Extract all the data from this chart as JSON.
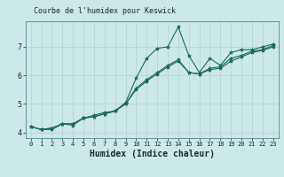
{
  "title": "Courbe de l'humidex pour Keswick",
  "xlabel": "Humidex (Indice chaleur)",
  "ylabel": "",
  "bg_color": "#cce8e8",
  "line_color": "#1a6a5a",
  "grid_color": "#b8d4d4",
  "x_data": [
    0,
    1,
    2,
    3,
    4,
    5,
    6,
    7,
    8,
    9,
    10,
    11,
    12,
    13,
    14,
    15,
    16,
    17,
    18,
    19,
    20,
    21,
    22,
    23
  ],
  "line1": [
    4.2,
    4.1,
    4.1,
    4.3,
    4.25,
    4.5,
    4.6,
    4.7,
    4.75,
    5.05,
    5.9,
    6.6,
    6.95,
    7.0,
    7.7,
    6.7,
    6.1,
    6.6,
    6.35,
    6.8,
    6.9,
    6.9,
    7.0,
    7.1
  ],
  "line2": [
    4.2,
    4.1,
    4.15,
    4.3,
    4.3,
    4.5,
    4.55,
    4.65,
    4.75,
    5.0,
    5.55,
    5.85,
    6.1,
    6.35,
    6.55,
    6.1,
    6.05,
    6.25,
    6.3,
    6.6,
    6.7,
    6.85,
    6.9,
    7.05
  ],
  "line3": [
    4.2,
    4.1,
    4.15,
    4.3,
    4.3,
    4.5,
    4.55,
    4.65,
    4.75,
    5.0,
    5.5,
    5.8,
    6.05,
    6.3,
    6.5,
    6.1,
    6.05,
    6.2,
    6.25,
    6.5,
    6.65,
    6.8,
    6.88,
    7.0
  ],
  "ylim": [
    3.8,
    7.9
  ],
  "xlim": [
    -0.5,
    23.5
  ],
  "yticks": [
    4,
    5,
    6,
    7
  ],
  "xticks": [
    0,
    1,
    2,
    3,
    4,
    5,
    6,
    7,
    8,
    9,
    10,
    11,
    12,
    13,
    14,
    15,
    16,
    17,
    18,
    19,
    20,
    21,
    22,
    23
  ],
  "marker": "*",
  "markersize": 3,
  "linewidth": 0.8,
  "tick_fontsize": 5,
  "xlabel_fontsize": 7,
  "title_fontsize": 6
}
